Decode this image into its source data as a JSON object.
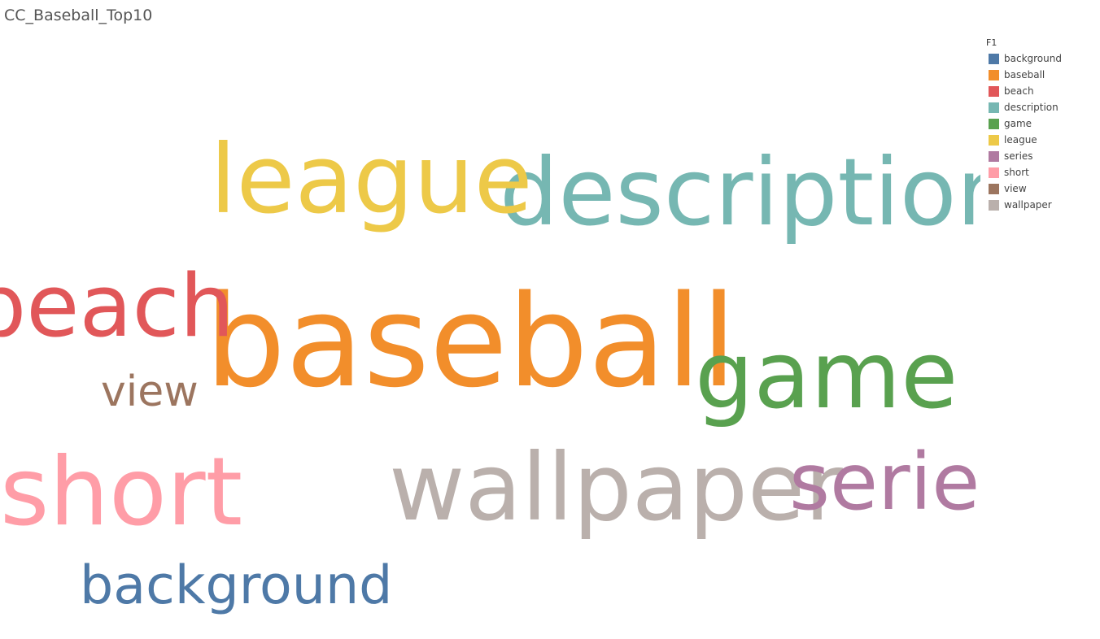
{
  "title": "CC_Baseball_Top10",
  "legend": {
    "title": "F1",
    "items": [
      {
        "label": "background",
        "color": "#4e79a7"
      },
      {
        "label": "baseball",
        "color": "#f28e2b"
      },
      {
        "label": "beach",
        "color": "#e15759"
      },
      {
        "label": "description",
        "color": "#76b7b2"
      },
      {
        "label": "game",
        "color": "#59a14f"
      },
      {
        "label": "league",
        "color": "#edc948"
      },
      {
        "label": "series",
        "color": "#b07aa1"
      },
      {
        "label": "short",
        "color": "#ff9da7"
      },
      {
        "label": "view",
        "color": "#9c755f"
      },
      {
        "label": "wallpaper",
        "color": "#bab0ac"
      }
    ]
  },
  "chart_data": {
    "type": "word-cloud",
    "title": "CC_Baseball_Top10",
    "legend_title": "F1",
    "legend_position": "top-right",
    "words": [
      {
        "text": "baseball",
        "color": "#f28e2b"
      },
      {
        "text": "description",
        "color": "#76b7b2"
      },
      {
        "text": "league",
        "color": "#edc948"
      },
      {
        "text": "short",
        "color": "#ff9da7"
      },
      {
        "text": "wallpaper",
        "color": "#bab0ac"
      },
      {
        "text": "game",
        "color": "#59a14f"
      },
      {
        "text": "beach",
        "color": "#e15759"
      },
      {
        "text": "series",
        "color": "#b07aa1"
      },
      {
        "text": "background",
        "color": "#4e79a7"
      },
      {
        "text": "view",
        "color": "#9c755f"
      }
    ]
  }
}
